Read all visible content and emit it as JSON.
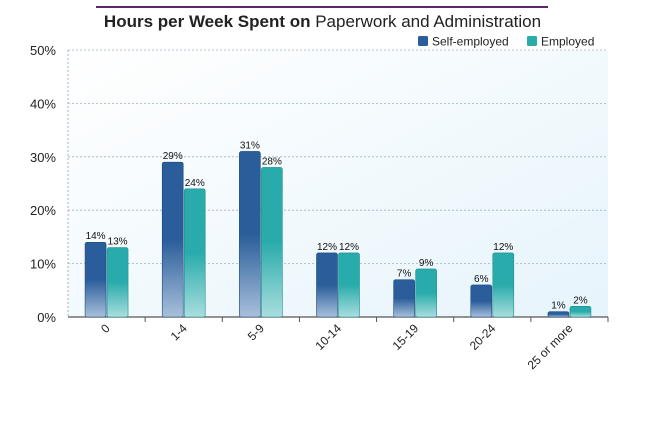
{
  "chart_data": {
    "type": "bar",
    "title_bold": "Hours per Week Spent on",
    "title_regular": "Paperwork and Administration",
    "categories": [
      "0",
      "1-4",
      "5-9",
      "10-14",
      "15-19",
      "20-24",
      "25 or more"
    ],
    "series": [
      {
        "name": "Self-employed",
        "values": [
          14,
          29,
          31,
          12,
          7,
          6,
          1
        ],
        "color": "#2a5d9a"
      },
      {
        "name": "Employed",
        "values": [
          13,
          24,
          28,
          12,
          9,
          12,
          2
        ],
        "color": "#2aabab"
      }
    ],
    "value_labels": {
      "Self-employed": [
        "14%",
        "29%",
        "31%",
        "12%",
        "7%",
        "6%",
        "1%"
      ],
      "Employed": [
        "13%",
        "24%",
        "28%",
        "12%",
        "9%",
        "12%",
        "2%"
      ]
    },
    "yticks": [
      "0%",
      "10%",
      "20%",
      "30%",
      "40%",
      "50%"
    ],
    "ylim": [
      0,
      50
    ],
    "xlabel": "",
    "ylabel": "",
    "grid": true,
    "legend_position": "top-right",
    "title_rule_color": "#5b2a6e"
  }
}
